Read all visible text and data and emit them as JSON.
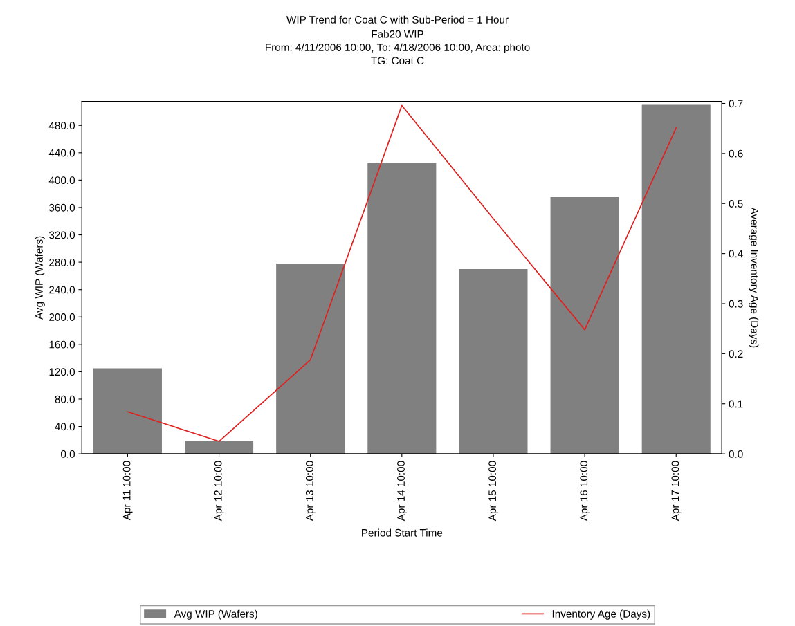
{
  "chart_data": {
    "type": "bar",
    "title": "WIP Trend for Coat C with Sub-Period = 1 Hour",
    "subtitle": "Fab20 WIP\nFrom: 4/11/2006 10:00, To: 4/18/2006 10:00, Area: photo\nTG: Coat C",
    "xlabel": "Period Start Time",
    "ylabel": "Avg WIP (Wafers)",
    "y2label": "Average Inventory Age (Days)",
    "categories": [
      "Apr 11 10:00",
      "Apr 12 10:00",
      "Apr 13 10:00",
      "Apr 14 10:00",
      "Apr 15 10:00",
      "Apr 16 10:00",
      "Apr 17 10:00"
    ],
    "series": [
      {
        "name": "Avg WIP (Wafers)",
        "color": "#808080",
        "values": [
          125,
          19,
          278,
          425,
          270,
          375,
          510
        ]
      },
      {
        "name": "Inventory Age (Days)",
        "type": "line",
        "axis": "y2",
        "color": "#e0201f",
        "values": [
          0.084,
          0.025,
          0.188,
          0.696,
          0.47,
          0.248,
          0.651
        ]
      }
    ],
    "ylim": [
      0,
      515
    ],
    "yticks": [
      {
        "value": 0,
        "label": "0.0"
      },
      {
        "value": 40,
        "label": "40.0"
      },
      {
        "value": 80,
        "label": "80.0"
      },
      {
        "value": 120,
        "label": "120.0"
      },
      {
        "value": 160,
        "label": "160.0"
      },
      {
        "value": 200,
        "label": "200.0"
      },
      {
        "value": 240,
        "label": "240.0"
      },
      {
        "value": 280,
        "label": "280.0"
      },
      {
        "value": 320,
        "label": "320.0"
      },
      {
        "value": 360,
        "label": "360.0"
      },
      {
        "value": 400,
        "label": "400.0"
      },
      {
        "value": 440,
        "label": "440.0"
      },
      {
        "value": 480,
        "label": "480.0"
      }
    ],
    "y2lim": [
      0,
      0.704
    ],
    "y2ticks": [
      {
        "value": 0,
        "label": "0.0"
      },
      {
        "value": 0.1,
        "label": "0.1"
      },
      {
        "value": 0.2,
        "label": "0.2"
      },
      {
        "value": 0.3,
        "label": "0.3"
      },
      {
        "value": 0.4,
        "label": "0.4"
      },
      {
        "value": 0.5,
        "label": "0.5"
      },
      {
        "value": 0.6,
        "label": "0.6"
      },
      {
        "value": 0.7,
        "label": "0.7"
      }
    ],
    "grid": false,
    "legend": "bottom",
    "marker": "none",
    "line_style": "solid"
  }
}
